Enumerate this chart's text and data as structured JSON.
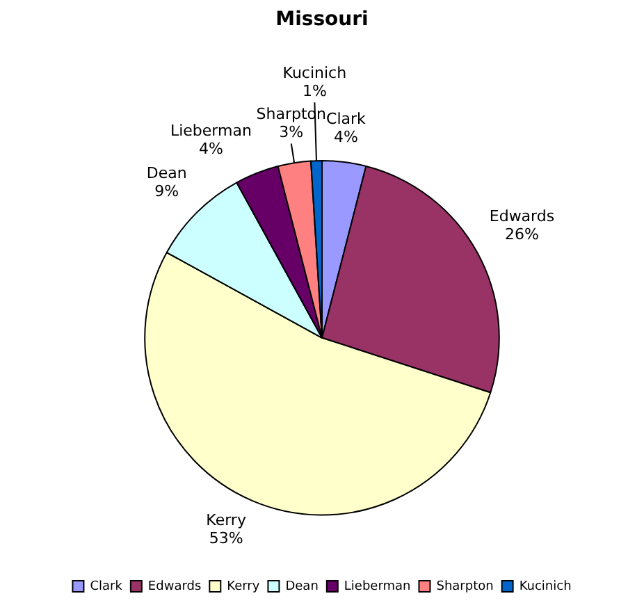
{
  "chart_data": {
    "type": "pie",
    "title": "Missouri",
    "categories": [
      "Clark",
      "Edwards",
      "Kerry",
      "Dean",
      "Lieberman",
      "Sharpton",
      "Kucinich"
    ],
    "values": [
      4,
      26,
      53,
      9,
      4,
      3,
      1
    ],
    "value_labels": [
      "4%",
      "26%",
      "53%",
      "9%",
      "4%",
      "3%",
      "1%"
    ],
    "colors": [
      "#9999ff",
      "#993366",
      "#ffffcc",
      "#ccffff",
      "#660066",
      "#ff8080",
      "#0066cc"
    ],
    "legend": "bottom"
  }
}
